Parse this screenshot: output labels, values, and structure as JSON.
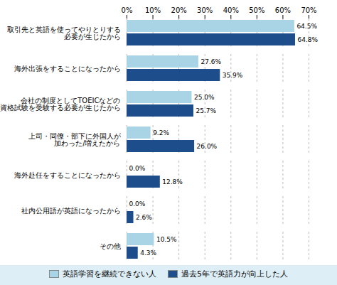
{
  "chart_data": {
    "type": "bar",
    "orientation": "horizontal",
    "categories": [
      "取引先と英語を使ってやりとりする\n必要が生じたから",
      "海外出張をすることになったから",
      "会社の制度としてTOEICなどの\n資格試験を受験する必要が生じたから",
      "上司・同僚・部下に外国人が\n加わった/増えたから",
      "海外赴任をすることになったから",
      "社内公用語が英語になったから",
      "その他"
    ],
    "series": [
      {
        "name": "英語学習を継続できない人",
        "color": "#a8d4e6",
        "values": [
          64.5,
          27.6,
          25.0,
          9.2,
          0.0,
          0.0,
          10.5
        ],
        "value_labels": [
          "64.5%",
          "27.6%",
          "25.0%",
          "9.2%",
          "0.0%",
          "0.0%",
          "10.5%"
        ]
      },
      {
        "name": "過去5年で英語力が向上した人",
        "color": "#1e4d8c",
        "values": [
          64.8,
          35.9,
          25.7,
          26.0,
          12.8,
          2.6,
          4.3
        ],
        "value_labels": [
          "64.8%",
          "35.9%",
          "25.7%",
          "26.0%",
          "12.8%",
          "2.6%",
          "4.3%"
        ]
      }
    ],
    "xlim": [
      0,
      70
    ],
    "xticks": [
      {
        "value": 0,
        "label": "0%"
      },
      {
        "value": 10,
        "label": "10%"
      },
      {
        "value": 20,
        "label": "20%"
      },
      {
        "value": 30,
        "label": "30%"
      },
      {
        "value": 40,
        "label": "40%"
      },
      {
        "value": 50,
        "label": "50%"
      },
      {
        "value": 60,
        "label": "60%"
      },
      {
        "value": 70,
        "label": "70%"
      }
    ],
    "grid": true,
    "legend": "bottom",
    "data_labels": true
  }
}
